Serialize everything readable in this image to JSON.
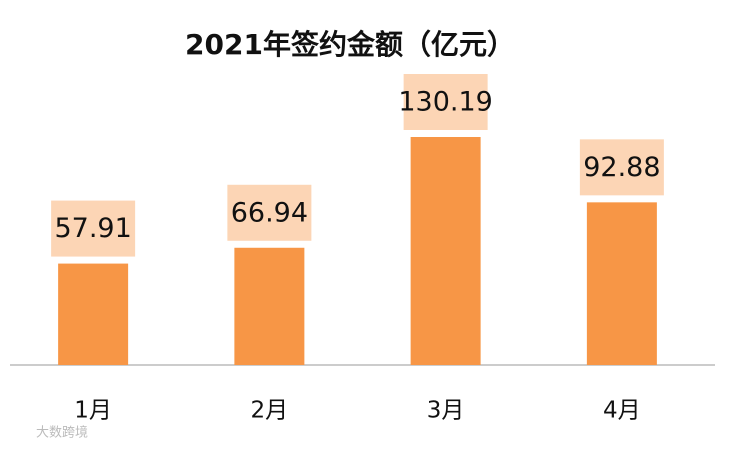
{
  "chart_data": {
    "type": "bar",
    "title": "2021年签约金额（亿元）",
    "categories": [
      "1月",
      "2月",
      "3月",
      "4月"
    ],
    "values": [
      57.91,
      66.94,
      130.19,
      92.88
    ],
    "color": "#f79646",
    "label_background": "#fcd5b5",
    "watermark": "大数跨境"
  }
}
